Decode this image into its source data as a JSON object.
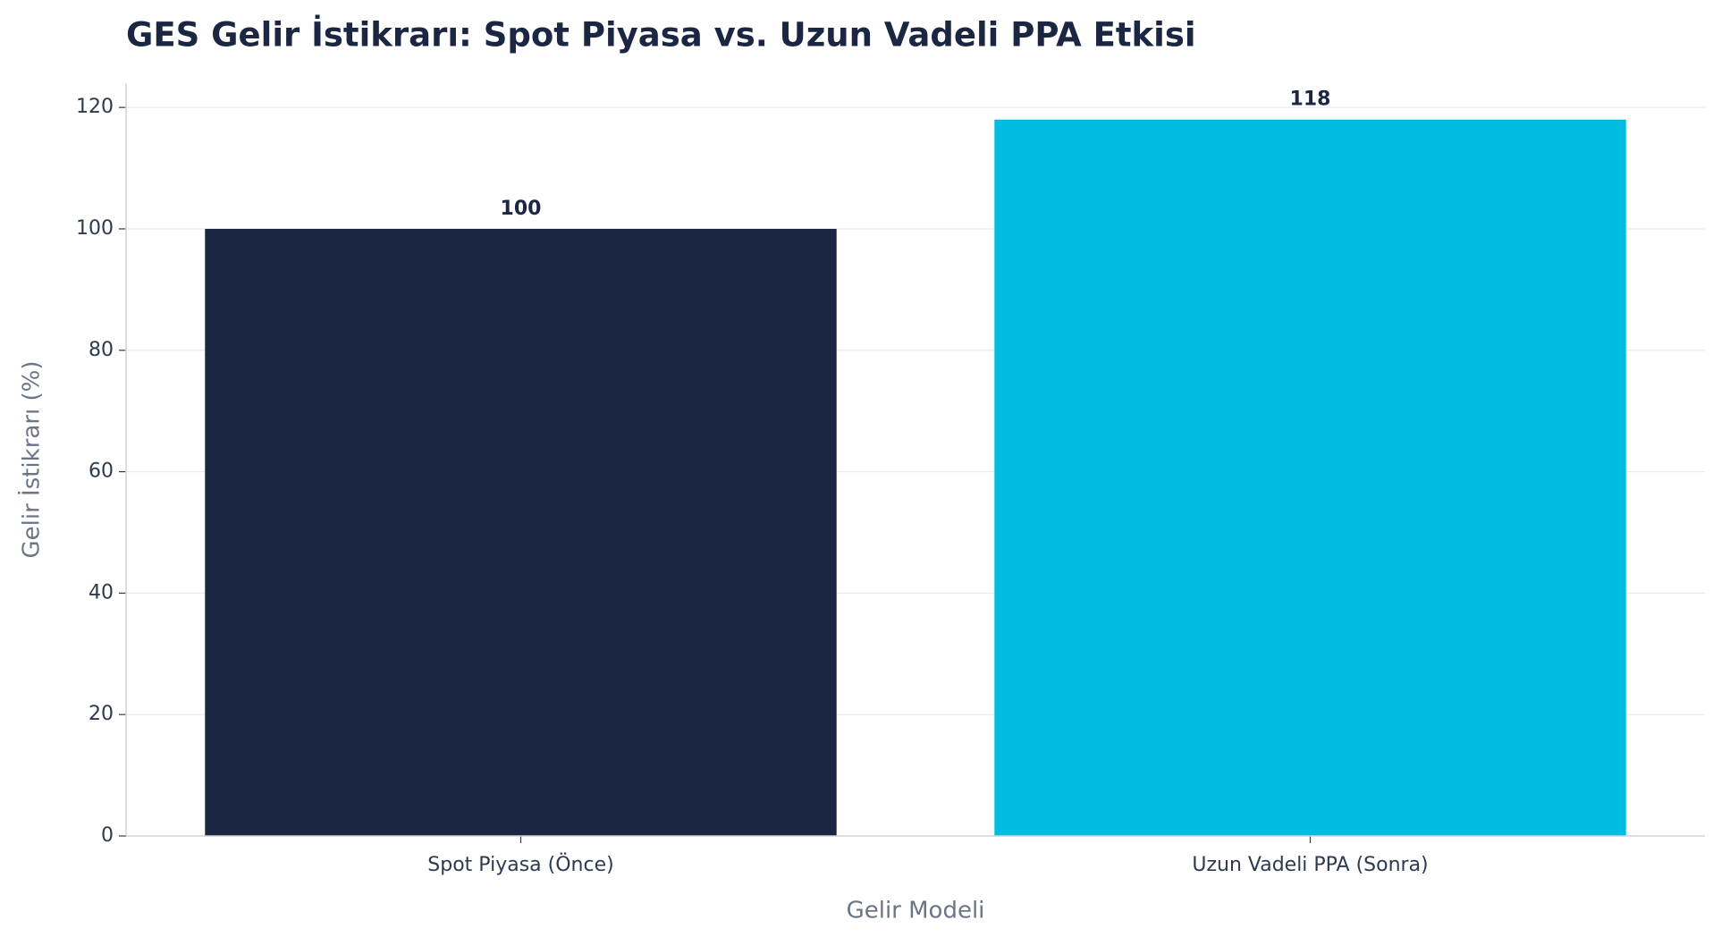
{
  "chart_data": {
    "type": "bar",
    "title": "GES Gelir İstikrarı: Spot Piyasa vs. Uzun Vadeli PPA Etkisi",
    "x_label": "Gelir Modeli",
    "y_label": "Gelir İstikrarı (%)",
    "categories": [
      "Spot Piyasa (Önce)",
      "Uzun Vadeli PPA (Sonra)"
    ],
    "values": [
      100,
      118
    ],
    "colors": [
      "#1b2742",
      "#00bce0"
    ],
    "ylim": [
      0,
      124
    ],
    "yticks": [
      0,
      20,
      40,
      60,
      80,
      100,
      120
    ],
    "grid": true
  }
}
